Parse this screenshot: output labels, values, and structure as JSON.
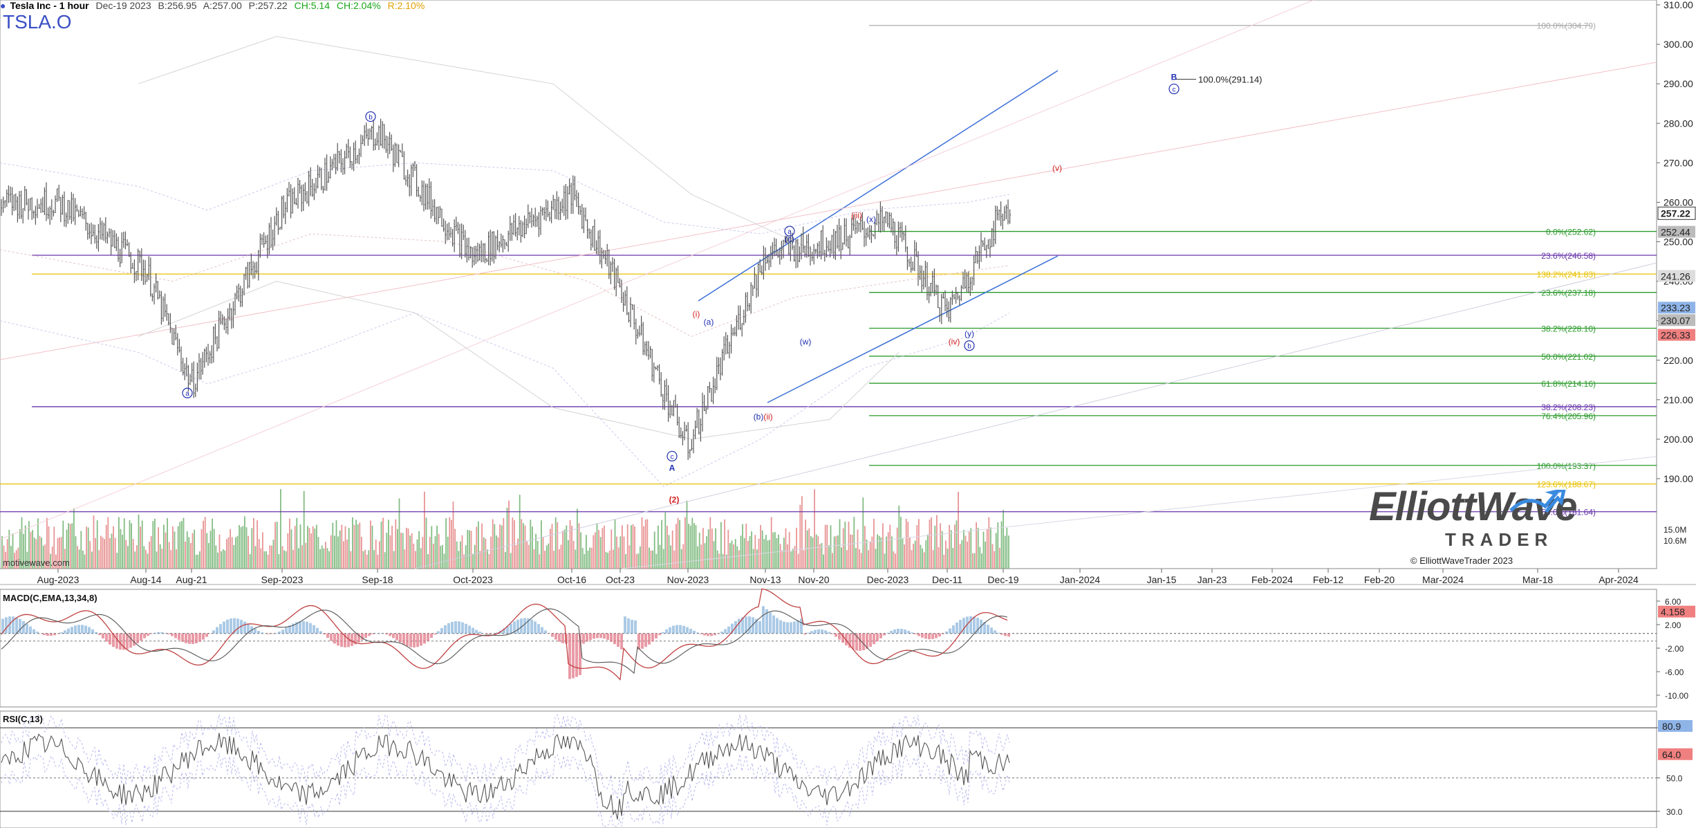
{
  "header": {
    "title": "Tesla Inc - 1 hour",
    "date": "Dec-19 2023",
    "bid": "B:256.95",
    "ask": "A:257.00",
    "price": "P:257.22",
    "change": "CH:5.14",
    "change_pct": "CH:2.04%",
    "range": "R:2.10%"
  },
  "ticker": "TSLA.O",
  "watermark": "motivewave.com",
  "copyright": "© ElliottWaveTrader 2023",
  "logo": {
    "line1": "ElliottWave",
    "line2": "TRADER"
  },
  "colors": {
    "bull": "#5aa65a",
    "bear": "#e07070",
    "price_bar": "#555555",
    "fib_green": "#2a9a2a",
    "fib_purple": "#6633aa",
    "fib_gold": "#e8c000",
    "channel": "#3a6fd8",
    "wave_blue": "#1f2fb0",
    "wave_red": "#d02020"
  },
  "chart_data": {
    "type": "line",
    "x": [
      "Aug-2023",
      "Aug-14",
      "Aug-21",
      "Sep-2023",
      "Sep-18",
      "Oct-2023",
      "Oct-16",
      "Oct-23",
      "Nov-2023",
      "Nov-13",
      "Nov-20",
      "Dec-2023",
      "Dec-11",
      "Dec-19"
    ],
    "y_price_path": [
      260,
      243,
      214,
      258,
      278,
      246,
      262,
      238,
      198,
      247,
      249,
      255,
      232,
      258
    ],
    "ylim": [
      180,
      310
    ],
    "y_ticks": [
      "310.00",
      "300.00",
      "290.00",
      "280.00",
      "270.00",
      "260.00",
      "250.00",
      "240.00",
      "230.00",
      "220.00",
      "210.00",
      "200.00",
      "190.00"
    ],
    "x_ticks": [
      "Aug-2023",
      "Aug-14",
      "Aug-21",
      "Sep-2023",
      "Sep-18",
      "Oct-2023",
      "Oct-16",
      "Oct-23",
      "Nov-2023",
      "Nov-13",
      "Nov-20",
      "Dec-2023",
      "Dec-11",
      "Dec-19",
      "Jan-2024",
      "Jan-15",
      "Jan-23",
      "Feb-2024",
      "Feb-12",
      "Feb-20",
      "Mar-2024",
      "Mar-18",
      "Apr-2024"
    ],
    "last_price": "257.22",
    "volume_ticks": [
      "15.0M",
      "10.6M"
    ],
    "price_badges": [
      {
        "label": "252.44",
        "price": 252.44,
        "color": "#bbbbbb"
      },
      {
        "label": "241.26",
        "price": 241.26,
        "color": "#dddddd"
      },
      {
        "label": "233.23",
        "price": 233.23,
        "color": "#8fb4e8"
      },
      {
        "label": "230.07",
        "price": 230.07,
        "color": "#bbbbbb"
      },
      {
        "label": "226.33",
        "price": 226.33,
        "color": "#f08080"
      }
    ],
    "fib_levels": [
      {
        "label": "100.0%(304.79)",
        "price": 304.79,
        "color": "#aaaaaa",
        "start": "Dec-2023"
      },
      {
        "label": "0.0%(252.62)",
        "price": 252.62,
        "color": "#2a9a2a",
        "start": "Dec-2023"
      },
      {
        "label": "23.6%(246.58)",
        "price": 246.58,
        "color": "#6633aa",
        "start": "Aug-2023"
      },
      {
        "label": "138.2%(241.83)",
        "price": 241.83,
        "color": "#e8c000",
        "start": "Aug-2023"
      },
      {
        "label": "23.6%(237.18)",
        "price": 237.18,
        "color": "#2a9a2a",
        "start": "Dec-2023"
      },
      {
        "label": "38.2%(228.10)",
        "price": 228.1,
        "color": "#2a9a2a",
        "start": "Dec-2023"
      },
      {
        "label": "50.0%(221.02)",
        "price": 221.02,
        "color": "#2a9a2a",
        "start": "Dec-2023"
      },
      {
        "label": "61.8%(214.16)",
        "price": 214.16,
        "color": "#2a9a2a",
        "start": "Dec-2023"
      },
      {
        "label": "38.2%(208.23)",
        "price": 208.23,
        "color": "#6633aa",
        "start": "Aug-2023"
      },
      {
        "label": "76.4%(205.96)",
        "price": 205.96,
        "color": "#2a9a2a",
        "start": "Dec-2023"
      },
      {
        "label": "100.0%(193.37)",
        "price": 193.37,
        "color": "#2a9a2a",
        "start": "Dec-2023"
      },
      {
        "label": "123.6%(188.67)",
        "price": 188.67,
        "color": "#e8c000",
        "start": "Aug-2023"
      },
      {
        "label": "50.0%(181.64)",
        "price": 181.64,
        "color": "#6633aa",
        "start": "Aug-2023"
      }
    ],
    "target_label": "100.0%(291.14)",
    "wave_labels": [
      {
        "text": "a",
        "date": "Aug-21",
        "price": 211,
        "color": "#1f2fb0",
        "circled": true
      },
      {
        "text": "b",
        "date": "Sep-18",
        "price": 281,
        "color": "#1f2fb0",
        "circled": true
      },
      {
        "text": "c",
        "date": "Oct-23",
        "price": 195,
        "color": "#1f2fb0",
        "circled": true
      },
      {
        "text": "A",
        "date": "Oct-23",
        "price": 192,
        "color": "#1f2fb0",
        "circled": false
      },
      {
        "text": "(2)",
        "date": "Oct-23",
        "price": 184,
        "color": "#d02020",
        "circled": false
      },
      {
        "text": "(i)",
        "date": "Oct-23",
        "price": 231,
        "color": "#d02020",
        "circled": false
      },
      {
        "text": "(a)",
        "date": "Nov-2023",
        "price": 229,
        "color": "#1f2fb0",
        "circled": false
      },
      {
        "text": "(b)",
        "date": "Nov-13",
        "price": 205,
        "color": "#1f2fb0",
        "circled": false
      },
      {
        "text": "(ii)",
        "date": "Nov-13",
        "price": 205,
        "color": "#d02020",
        "circled": false
      },
      {
        "text": "a",
        "date": "Nov-13",
        "price": 252,
        "color": "#1f2fb0",
        "circled": true
      },
      {
        "text": "(c)",
        "date": "Nov-13",
        "price": 250,
        "color": "#1f2fb0",
        "circled": false
      },
      {
        "text": "(w)",
        "date": "Nov-20",
        "price": 224,
        "color": "#1f2fb0",
        "circled": false
      },
      {
        "text": "(iii)",
        "date": "Nov-20",
        "price": 256,
        "color": "#d02020",
        "circled": false
      },
      {
        "text": "(x)",
        "date": "Dec-2023",
        "price": 255,
        "color": "#1f2fb0",
        "circled": false
      },
      {
        "text": "(iv)",
        "date": "Dec-11",
        "price": 224,
        "color": "#d02020",
        "circled": false
      },
      {
        "text": "(y)",
        "date": "Dec-11",
        "price": 226,
        "color": "#1f2fb0",
        "circled": false
      },
      {
        "text": "b",
        "date": "Dec-11",
        "price": 223,
        "color": "#1f2fb0",
        "circled": true
      },
      {
        "text": "(v)",
        "date": "Dec-19",
        "price": 268,
        "color": "#d02020",
        "circled": false
      },
      {
        "text": "B",
        "date": "Jan-15",
        "price": 291,
        "color": "#1f2fb0",
        "circled": false
      },
      {
        "text": "c",
        "date": "Jan-15",
        "price": 288,
        "color": "#1f2fb0",
        "circled": true
      }
    ],
    "macd": {
      "title": "MACD(C,EMA,13,34,8)",
      "y_ticks": [
        "6.00",
        "2.00",
        "-2.00",
        "-6.00",
        "-10.00"
      ],
      "ylim": [
        -12,
        8
      ],
      "value": "4.158"
    },
    "rsi": {
      "title": "RSI(C,13)",
      "y_ticks": [
        "80.0",
        "50.0",
        "30.0"
      ],
      "ylim": [
        20,
        90
      ],
      "value_high": "80.9",
      "value_low": "64.0"
    }
  }
}
